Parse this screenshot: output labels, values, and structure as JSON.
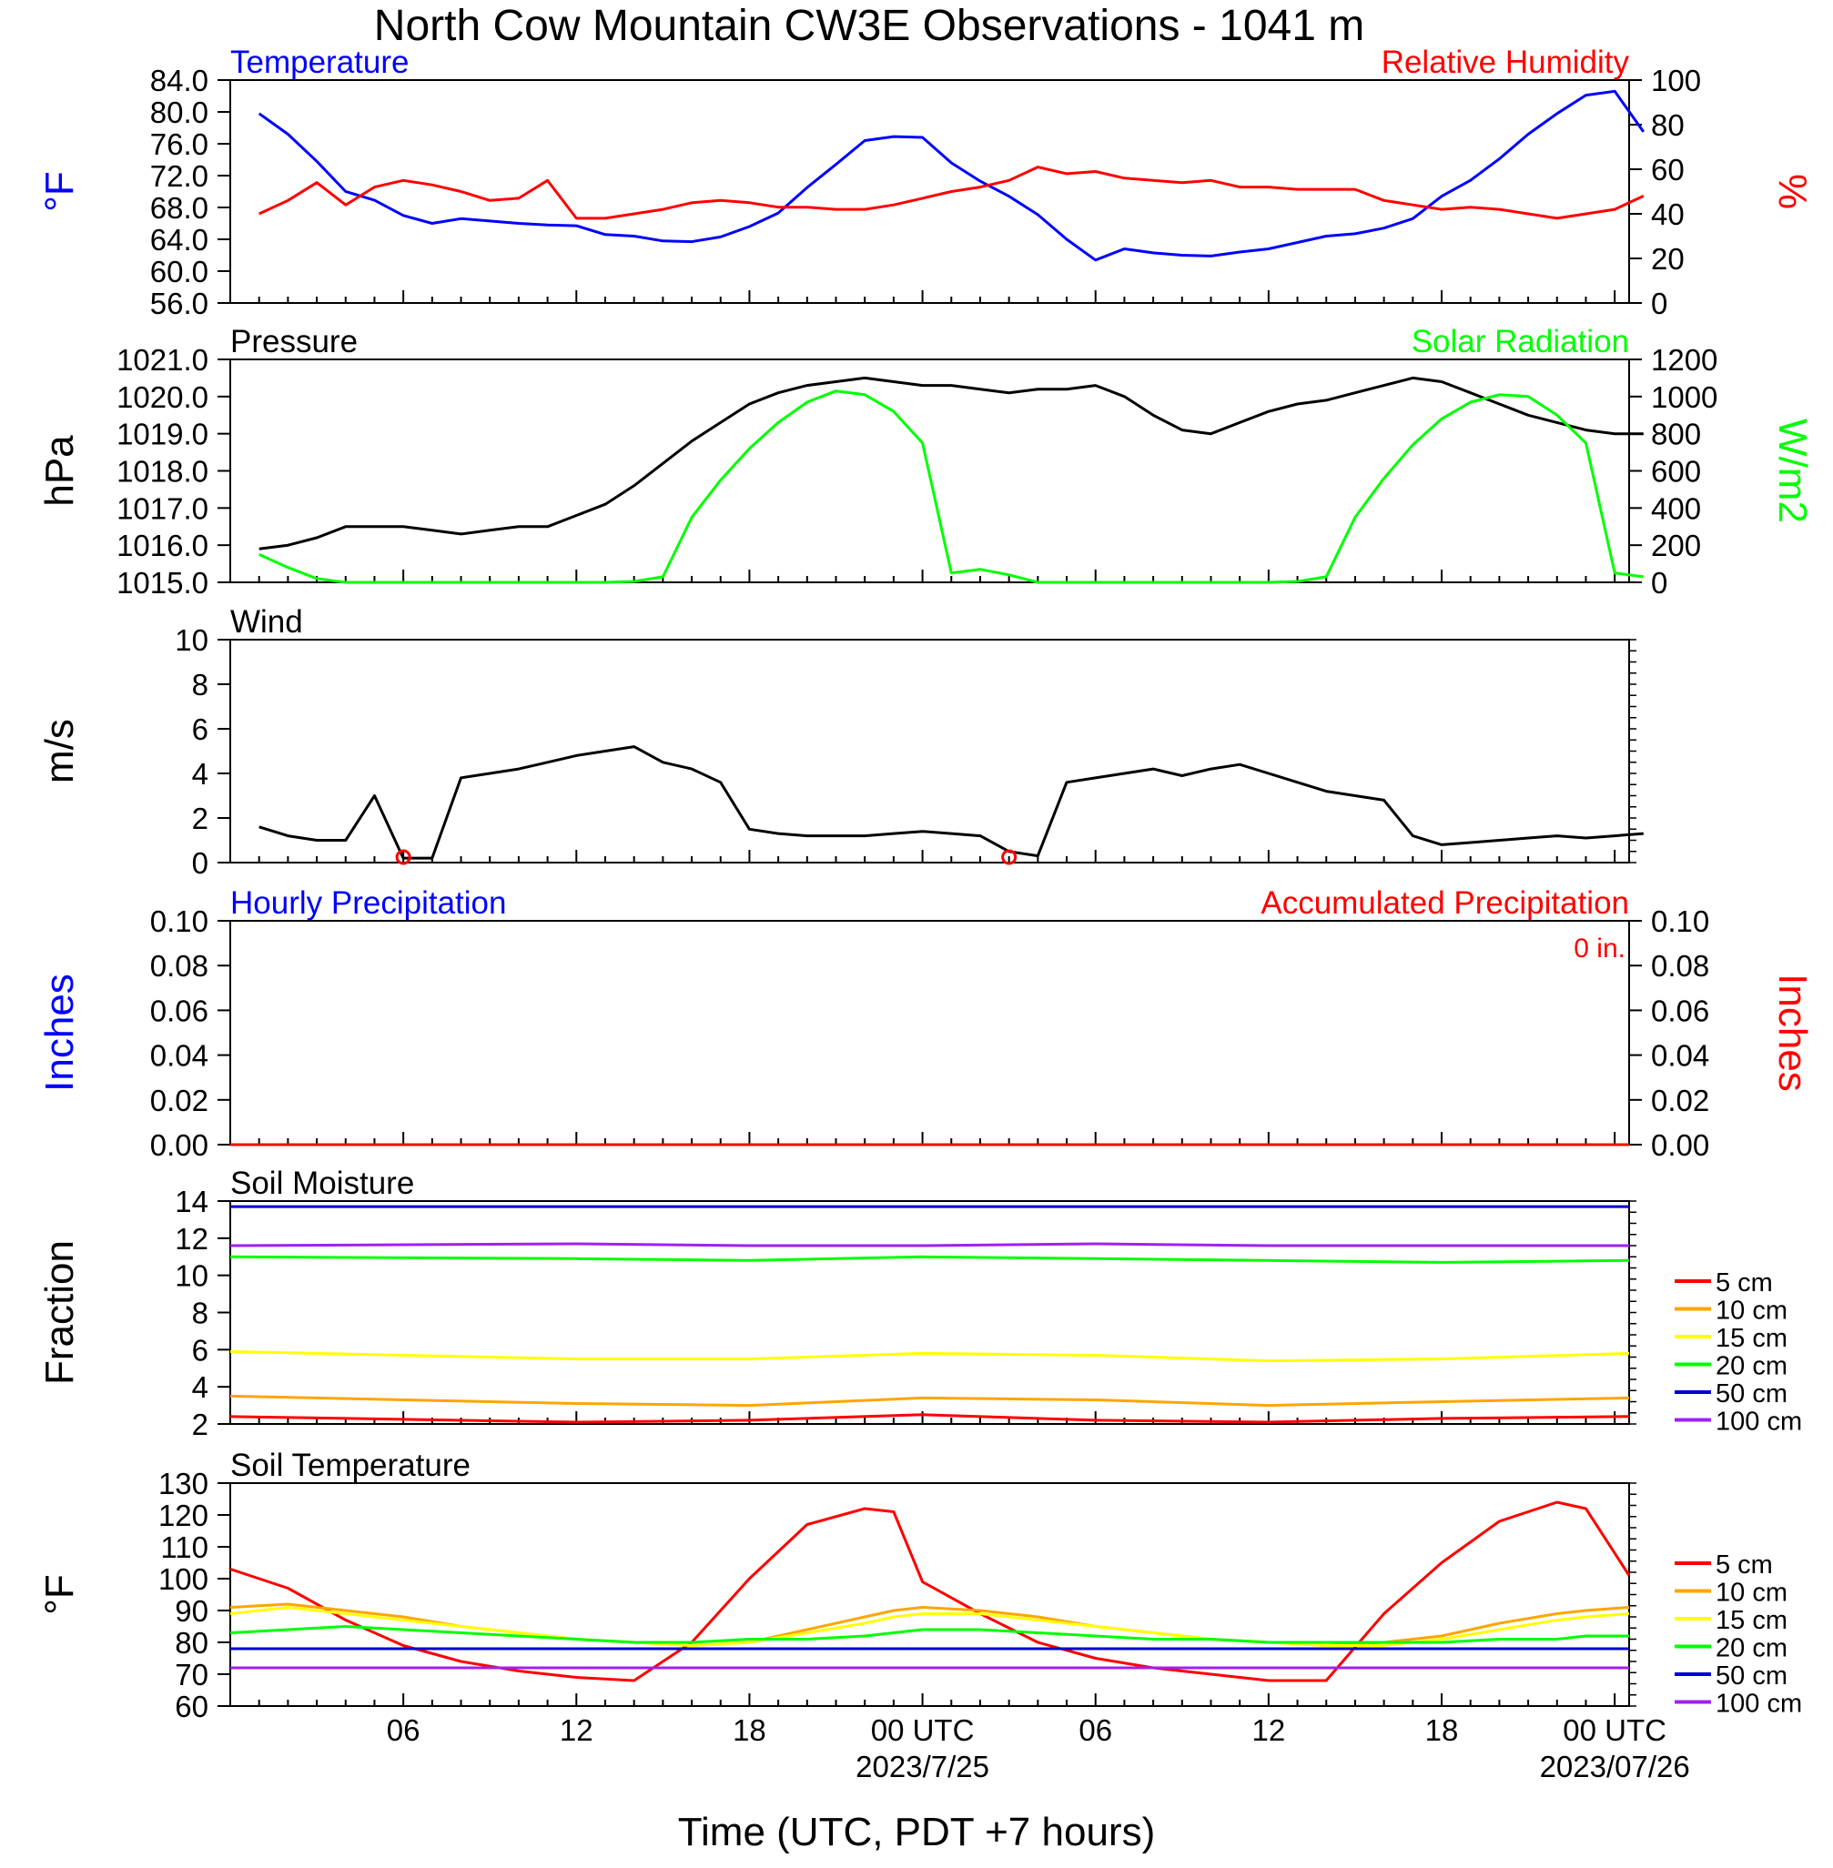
{
  "title": "North Cow Mountain CW3E Observations - 1041 m",
  "xlabel": "Time (UTC, PDT +7 hours)",
  "x_ticks": [
    "06",
    "12",
    "18",
    "00 UTC",
    "06",
    "12",
    "18",
    "00 UTC"
  ],
  "x_dates": [
    "2023/7/25",
    "2023/07/26"
  ],
  "colors": {
    "blue": "#0000ff",
    "red": "#ff0000",
    "green": "#00ff00",
    "black": "#000000",
    "orange": "#ffa500",
    "yellow": "#ffff00",
    "purple": "#a020f0",
    "darkblue": "#0000cd"
  },
  "chart_data": [
    {
      "type": "line",
      "panel": "temperature-humidity",
      "left_title": "Temperature",
      "right_title": "Relative Humidity",
      "ylabel_left": "°F",
      "ylabel_right": "%",
      "ylim_left": [
        56,
        84
      ],
      "ylim_right": [
        0,
        100
      ],
      "yticks_left": [
        "56.0",
        "60.0",
        "64.0",
        "68.0",
        "72.0",
        "76.0",
        "80.0",
        "84.0"
      ],
      "yticks_right": [
        "0",
        "20",
        "40",
        "60",
        "80",
        "100"
      ],
      "x_hours": [
        1,
        2,
        3,
        4,
        5,
        6,
        7,
        8,
        9,
        10,
        11,
        12,
        13,
        14,
        15,
        16,
        17,
        18,
        19,
        20,
        21,
        22,
        23,
        24,
        25,
        26,
        27,
        28,
        29,
        30,
        31,
        32,
        33,
        34,
        35,
        36,
        37,
        38,
        39,
        40,
        41,
        42,
        43,
        44,
        45,
        46,
        47,
        48,
        49
      ],
      "series": [
        {
          "name": "Temperature",
          "axis": "left",
          "color": "#0000ff",
          "values": [
            79.8,
            77.2,
            73.8,
            70.0,
            68.9,
            67.0,
            66.0,
            66.6,
            66.3,
            66.0,
            65.8,
            65.7,
            64.6,
            64.4,
            63.8,
            63.7,
            64.3,
            65.6,
            67.3,
            70.5,
            73.4,
            76.4,
            76.9,
            76.8,
            73.6,
            71.3,
            69.4,
            67.1,
            64.0,
            61.4,
            62.8,
            62.3,
            62.0,
            61.9,
            62.4,
            62.8,
            63.6,
            64.4,
            64.7,
            65.4,
            66.6,
            69.4,
            71.4,
            74.1,
            77.2,
            79.8,
            82.1,
            82.6,
            77.5
          ]
        },
        {
          "name": "Relative Humidity",
          "axis": "right",
          "color": "#ff0000",
          "values": [
            40,
            46,
            54,
            44,
            52,
            55,
            53,
            50,
            46,
            47,
            55,
            38,
            38,
            40,
            42,
            45,
            46,
            45,
            43,
            43,
            42,
            42,
            44,
            47,
            50,
            52,
            55,
            61,
            58,
            59,
            56,
            55,
            54,
            55,
            52,
            52,
            51,
            51,
            51,
            46,
            44,
            42,
            43,
            42,
            40,
            38,
            40,
            42,
            48
          ]
        }
      ]
    },
    {
      "type": "line",
      "panel": "pressure-solar",
      "left_title": "Pressure",
      "right_title": "Solar Radiation",
      "ylabel_left": "hPa",
      "ylabel_right": "W/m2",
      "ylim_left": [
        1015,
        1021
      ],
      "ylim_right": [
        0,
        1200
      ],
      "yticks_left": [
        "1015.0",
        "1016.0",
        "1017.0",
        "1018.0",
        "1019.0",
        "1020.0",
        "1021.0"
      ],
      "yticks_right": [
        "0",
        "200",
        "400",
        "600",
        "800",
        "1000",
        "1200"
      ],
      "x_hours": [
        1,
        2,
        3,
        4,
        5,
        6,
        7,
        8,
        9,
        10,
        11,
        12,
        13,
        14,
        15,
        16,
        17,
        18,
        19,
        20,
        21,
        22,
        23,
        24,
        25,
        26,
        27,
        28,
        29,
        30,
        31,
        32,
        33,
        34,
        35,
        36,
        37,
        38,
        39,
        40,
        41,
        42,
        43,
        44,
        45,
        46,
        47,
        48,
        49
      ],
      "series": [
        {
          "name": "Pressure",
          "axis": "left",
          "color": "#000000",
          "values": [
            1015.9,
            1016.0,
            1016.2,
            1016.5,
            1016.5,
            1016.5,
            1016.4,
            1016.3,
            1016.4,
            1016.5,
            1016.5,
            1016.8,
            1017.1,
            1017.6,
            1018.2,
            1018.8,
            1019.3,
            1019.8,
            1020.1,
            1020.3,
            1020.4,
            1020.5,
            1020.4,
            1020.3,
            1020.3,
            1020.2,
            1020.1,
            1020.2,
            1020.2,
            1020.3,
            1020.0,
            1019.5,
            1019.1,
            1019.0,
            1019.3,
            1019.6,
            1019.8,
            1019.9,
            1020.1,
            1020.3,
            1020.5,
            1020.4,
            1020.1,
            1019.8,
            1019.5,
            1019.3,
            1019.1,
            1019.0,
            1019.0
          ]
        },
        {
          "name": "Solar Radiation",
          "axis": "right",
          "color": "#00ff00",
          "values": [
            150,
            80,
            20,
            0,
            0,
            0,
            0,
            0,
            0,
            0,
            0,
            0,
            0,
            5,
            30,
            350,
            550,
            720,
            860,
            970,
            1030,
            1010,
            920,
            750,
            50,
            70,
            40,
            0,
            0,
            0,
            0,
            0,
            0,
            0,
            0,
            0,
            5,
            30,
            350,
            560,
            740,
            880,
            970,
            1010,
            1000,
            900,
            750,
            50,
            30
          ]
        }
      ]
    },
    {
      "type": "line",
      "panel": "wind",
      "left_title": "Wind",
      "ylabel_left": "m/s",
      "ylim_left": [
        0,
        10
      ],
      "yticks_left": [
        "0",
        "2",
        "4",
        "6",
        "8",
        "10"
      ],
      "x_hours": [
        1,
        2,
        3,
        4,
        5,
        6,
        7,
        8,
        9,
        10,
        11,
        12,
        13,
        14,
        15,
        16,
        17,
        18,
        19,
        20,
        21,
        22,
        23,
        24,
        25,
        26,
        27,
        28,
        29,
        30,
        31,
        32,
        33,
        34,
        35,
        36,
        37,
        38,
        39,
        40,
        41,
        42,
        43,
        44,
        45,
        46,
        47,
        48,
        49
      ],
      "series": [
        {
          "name": "Wind speed",
          "color": "#000000",
          "values": [
            1.6,
            1.2,
            1.0,
            1.0,
            3.0,
            0.2,
            0.2,
            3.8,
            4.0,
            4.2,
            4.5,
            4.8,
            5.0,
            5.2,
            4.5,
            4.2,
            3.6,
            1.5,
            1.3,
            1.2,
            1.2,
            1.2,
            1.3,
            1.4,
            1.3,
            1.2,
            0.5,
            0.3,
            3.6,
            3.8,
            4.0,
            4.2,
            3.9,
            4.2,
            4.4,
            4.0,
            3.6,
            3.2,
            3.0,
            2.8,
            1.2,
            0.8,
            0.9,
            1.0,
            1.1,
            1.2,
            1.1,
            1.2,
            1.3
          ]
        }
      ],
      "calm_markers_hours": [
        6,
        27
      ]
    },
    {
      "type": "line",
      "panel": "precipitation",
      "left_title": "Hourly Precipitation",
      "right_title": "Accumulated Precipitation",
      "annotation": "0 in.",
      "ylabel_left": "Inches",
      "ylabel_right": "Inches",
      "ylim_left": [
        0,
        0.1
      ],
      "ylim_right": [
        0,
        0.1
      ],
      "yticks_left": [
        "0.00",
        "0.02",
        "0.04",
        "0.06",
        "0.08",
        "0.10"
      ],
      "yticks_right": [
        "0.00",
        "0.02",
        "0.04",
        "0.06",
        "0.08",
        "0.10"
      ],
      "x_hours": [
        0,
        48.5
      ],
      "series": [
        {
          "name": "Hourly Precipitation",
          "color": "#0000ff",
          "values": [
            0,
            0
          ]
        },
        {
          "name": "Accumulated Precipitation",
          "color": "#ff0000",
          "values": [
            0,
            0
          ]
        }
      ]
    },
    {
      "type": "line",
      "panel": "soil-moisture",
      "left_title": "Soil Moisture",
      "ylabel_left": "Fraction",
      "ylim_left": [
        2,
        14
      ],
      "yticks_left": [
        "2",
        "4",
        "6",
        "8",
        "10",
        "12",
        "14"
      ],
      "x_hours": [
        0,
        12,
        18,
        24,
        30,
        36,
        42,
        48.5
      ],
      "series": [
        {
          "name": "5 cm",
          "color": "#ff0000",
          "values": [
            2.4,
            2.1,
            2.2,
            2.5,
            2.2,
            2.1,
            2.3,
            2.4
          ]
        },
        {
          "name": "10 cm",
          "color": "#ffa500",
          "values": [
            3.5,
            3.1,
            3.0,
            3.4,
            3.3,
            3.0,
            3.2,
            3.4
          ]
        },
        {
          "name": "15 cm",
          "color": "#ffff00",
          "values": [
            5.9,
            5.5,
            5.5,
            5.8,
            5.7,
            5.4,
            5.5,
            5.8
          ]
        },
        {
          "name": "20 cm",
          "color": "#00ff00",
          "values": [
            11.0,
            10.9,
            10.8,
            11.0,
            10.9,
            10.8,
            10.7,
            10.8
          ]
        },
        {
          "name": "50 cm",
          "color": "#0000cd",
          "values": [
            13.7,
            13.7,
            13.7,
            13.7,
            13.7,
            13.7,
            13.7,
            13.7
          ]
        },
        {
          "name": "100 cm",
          "color": "#a020f0",
          "values": [
            11.6,
            11.7,
            11.6,
            11.6,
            11.7,
            11.6,
            11.6,
            11.6
          ]
        }
      ]
    },
    {
      "type": "line",
      "panel": "soil-temperature",
      "left_title": "Soil Temperature",
      "ylabel_left": "°F",
      "ylim_left": [
        60,
        130
      ],
      "yticks_left": [
        "60",
        "70",
        "80",
        "90",
        "100",
        "110",
        "120",
        "130"
      ],
      "x_hours": [
        0,
        2,
        4,
        6,
        8,
        10,
        12,
        14,
        16,
        18,
        20,
        22,
        23,
        24,
        26,
        28,
        30,
        32,
        34,
        36,
        38,
        40,
        42,
        44,
        46,
        47,
        48.5
      ],
      "series": [
        {
          "name": "5 cm",
          "color": "#ff0000",
          "values": [
            103,
            97,
            87,
            79,
            74,
            71,
            69,
            68,
            80,
            100,
            117,
            122,
            121,
            99,
            89,
            80,
            75,
            72,
            70,
            68,
            68,
            89,
            105,
            118,
            124,
            122,
            101
          ]
        },
        {
          "name": "10 cm",
          "color": "#ffa500",
          "values": [
            91,
            92,
            90,
            88,
            85,
            83,
            81,
            80,
            79,
            80,
            84,
            88,
            90,
            91,
            90,
            88,
            85,
            83,
            81,
            80,
            79,
            80,
            82,
            86,
            89,
            90,
            91
          ]
        },
        {
          "name": "15 cm",
          "color": "#ffff00",
          "values": [
            89,
            91,
            89,
            87,
            85,
            83,
            81,
            80,
            79,
            80,
            83,
            86,
            88,
            89,
            89,
            87,
            85,
            83,
            81,
            80,
            79,
            79,
            81,
            84,
            87,
            88,
            89
          ]
        },
        {
          "name": "20 cm",
          "color": "#00ff00",
          "values": [
            83,
            84,
            85,
            84,
            83,
            82,
            81,
            80,
            80,
            81,
            81,
            82,
            83,
            84,
            84,
            83,
            82,
            81,
            81,
            80,
            80,
            80,
            80,
            81,
            81,
            82,
            82
          ]
        },
        {
          "name": "50 cm",
          "color": "#0000cd",
          "values": [
            78,
            78,
            78,
            78,
            78,
            78,
            78,
            78,
            78,
            78,
            78,
            78,
            78,
            78,
            78,
            78,
            78,
            78,
            78,
            78,
            78,
            78,
            78,
            78,
            78,
            78,
            78
          ]
        },
        {
          "name": "100 cm",
          "color": "#a020f0",
          "values": [
            72,
            72,
            72,
            72,
            72,
            72,
            72,
            72,
            72,
            72,
            72,
            72,
            72,
            72,
            72,
            72,
            72,
            72,
            72,
            72,
            72,
            72,
            72,
            72,
            72,
            72,
            72
          ]
        }
      ]
    }
  ]
}
